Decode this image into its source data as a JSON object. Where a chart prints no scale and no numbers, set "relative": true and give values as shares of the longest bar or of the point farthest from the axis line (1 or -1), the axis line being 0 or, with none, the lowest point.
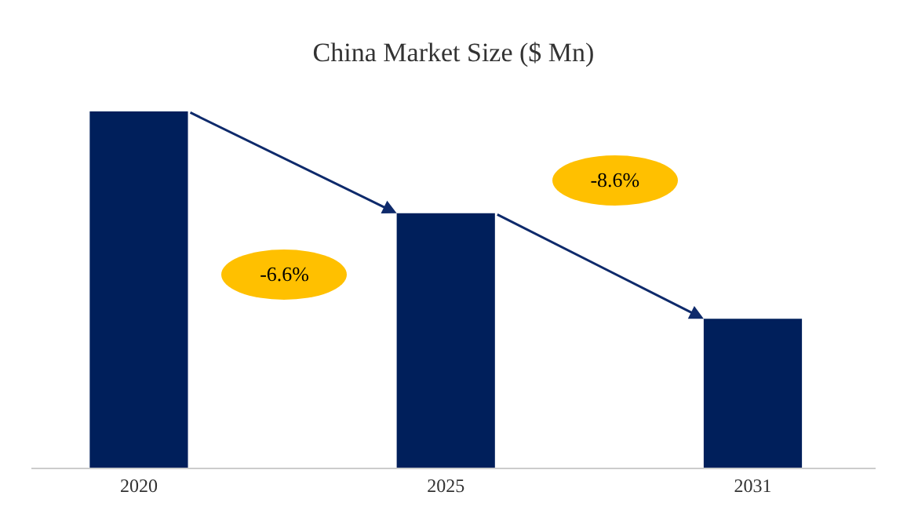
{
  "chart_data": {
    "type": "bar",
    "title": "China Market Size ($ Mn)",
    "categories": [
      "2020",
      "2025",
      "2031"
    ],
    "values": [
      1,
      0.714,
      0.418
    ],
    "color": "#001f5b",
    "relative": true,
    "annotations": [
      "-6.6%",
      "-8.6%"
    ],
    "grid": false
  }
}
